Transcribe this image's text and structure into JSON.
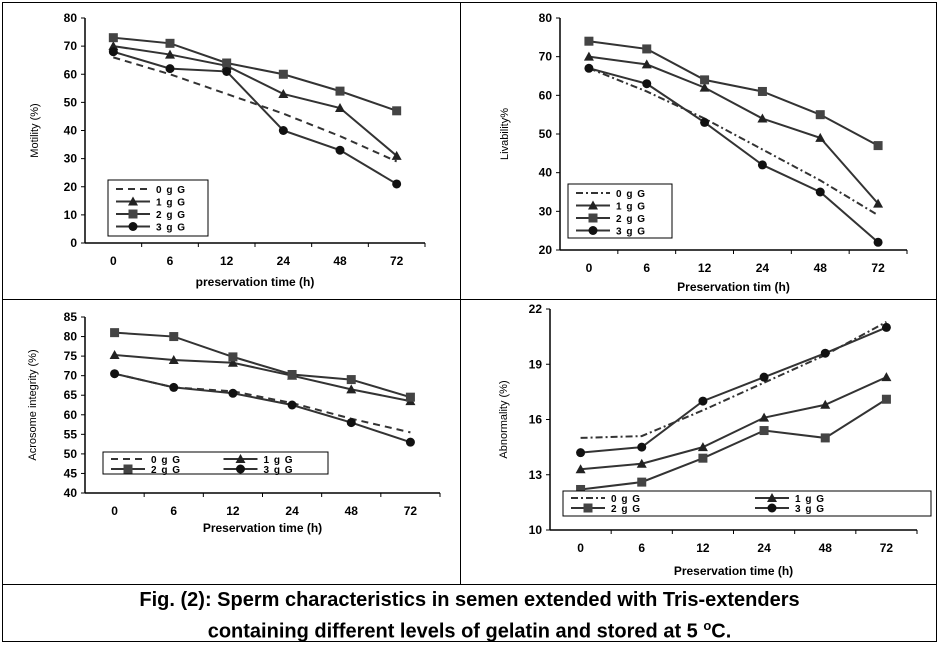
{
  "caption": {
    "line1": "Fig. (2): Sperm characteristics in semen extended with Tris-extenders",
    "line2_before": "containing different levels of gelatin and stored at 5 ",
    "line2_sup": "o",
    "line2_after": "C."
  },
  "chart_data": [
    {
      "type": "line",
      "categories": [
        "0",
        "6",
        "12",
        "24",
        "48",
        "72"
      ],
      "ylabel": "Motility (%)",
      "xlabel": "preservation time (h)",
      "ylim": [
        0,
        80
      ],
      "yticks": [
        0,
        10,
        20,
        30,
        40,
        50,
        60,
        70,
        80
      ],
      "legend": "center-left",
      "series": [
        {
          "name": "0 g G",
          "values": [
            66,
            60,
            53,
            46,
            38,
            29
          ],
          "style": "dashed",
          "marker": "none"
        },
        {
          "name": "1 g G",
          "values": [
            70,
            67,
            63,
            53,
            48,
            31
          ],
          "style": "solid",
          "marker": "triangle"
        },
        {
          "name": "2 g G",
          "values": [
            73,
            71,
            64,
            60,
            54,
            47
          ],
          "style": "solid",
          "marker": "square"
        },
        {
          "name": "3 g G",
          "values": [
            68,
            62,
            61,
            40,
            33,
            21
          ],
          "style": "solid",
          "marker": "circle"
        }
      ]
    },
    {
      "type": "line",
      "categories": [
        "0",
        "6",
        "12",
        "24",
        "48",
        "72"
      ],
      "ylabel": "Livability%",
      "xlabel": "Preservation tim (h)",
      "ylim": [
        20,
        80
      ],
      "yticks": [
        20,
        30,
        40,
        50,
        60,
        70,
        80
      ],
      "legend": "bottom-left",
      "series": [
        {
          "name": "0 g G",
          "values": [
            67,
            61,
            54,
            46,
            38,
            29
          ],
          "style": "dashdot",
          "marker": "none"
        },
        {
          "name": "1 g G",
          "values": [
            70,
            68,
            62,
            54,
            49,
            32
          ],
          "style": "solid",
          "marker": "triangle"
        },
        {
          "name": "2 g G",
          "values": [
            74,
            72,
            64,
            61,
            55,
            47
          ],
          "style": "solid",
          "marker": "square"
        },
        {
          "name": "3 g G",
          "values": [
            67,
            63,
            53,
            42,
            35,
            22
          ],
          "style": "solid",
          "marker": "circle"
        }
      ]
    },
    {
      "type": "line",
      "categories": [
        "0",
        "6",
        "12",
        "24",
        "48",
        "72"
      ],
      "ylabel": "Acrosome integrity (%)",
      "xlabel": "Preservation time (h)",
      "ylim": [
        40,
        85
      ],
      "yticks": [
        40,
        45,
        50,
        55,
        60,
        65,
        70,
        75,
        80,
        85
      ],
      "legend": "bottom",
      "series": [
        {
          "name": "0 g G",
          "values": [
            70.5,
            67,
            66,
            63,
            59,
            55.5
          ],
          "style": "dashed",
          "marker": "none"
        },
        {
          "name": "1 g G",
          "values": [
            75.3,
            74,
            73.3,
            70,
            66.5,
            63.5
          ],
          "style": "solid",
          "marker": "triangle"
        },
        {
          "name": "2 g G",
          "values": [
            81,
            80,
            74.8,
            70.3,
            69,
            64.5
          ],
          "style": "solid",
          "marker": "square"
        },
        {
          "name": "3 g G",
          "values": [
            70.5,
            67,
            65.5,
            62.5,
            58,
            53
          ],
          "style": "solid",
          "marker": "circle"
        }
      ]
    },
    {
      "type": "line",
      "categories": [
        "0",
        "6",
        "12",
        "24",
        "48",
        "72"
      ],
      "ylabel": "Abnormality (%)",
      "xlabel": "Preservation time (h)",
      "ylim": [
        10,
        22
      ],
      "yticks": [
        10,
        13,
        16,
        19,
        22
      ],
      "legend": "bottom",
      "series": [
        {
          "name": "0 g G",
          "values": [
            15,
            15.1,
            16.5,
            18,
            19.5,
            21.3
          ],
          "style": "dashdot",
          "marker": "none"
        },
        {
          "name": "1 g G",
          "values": [
            13.3,
            13.6,
            14.5,
            16.1,
            16.8,
            18.3
          ],
          "style": "solid",
          "marker": "triangle"
        },
        {
          "name": "2 g G",
          "values": [
            12.2,
            12.6,
            13.9,
            15.4,
            15,
            17.1
          ],
          "style": "solid",
          "marker": "square"
        },
        {
          "name": "3 g G",
          "values": [
            14.2,
            14.5,
            17,
            18.3,
            19.6,
            21
          ],
          "style": "solid",
          "marker": "circle"
        }
      ]
    }
  ]
}
